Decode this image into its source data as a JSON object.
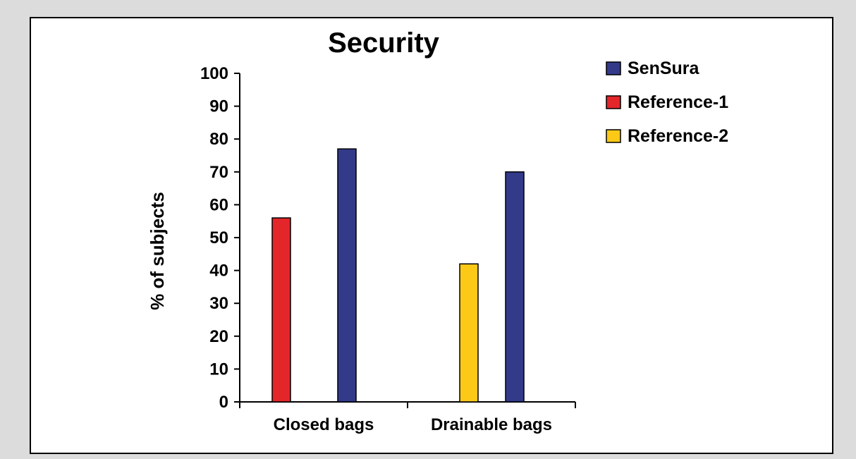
{
  "chart_data": {
    "type": "bar",
    "title": "Security",
    "ylabel": "% of subjects",
    "xlabel": "",
    "ylim": [
      0,
      100
    ],
    "yticks": [
      0,
      10,
      20,
      30,
      40,
      50,
      60,
      70,
      80,
      90,
      100
    ],
    "categories": [
      "Closed bags",
      "Drainable bags"
    ],
    "series": [
      {
        "name": "SenSura",
        "color": "#333a8a",
        "values": [
          77,
          70
        ]
      },
      {
        "name": "Reference-1",
        "color": "#e2262a",
        "values": [
          56,
          null
        ]
      },
      {
        "name": "Reference-2",
        "color": "#fcc917",
        "values": [
          null,
          42
        ]
      }
    ],
    "legend_position": "top-right",
    "grid": false
  }
}
